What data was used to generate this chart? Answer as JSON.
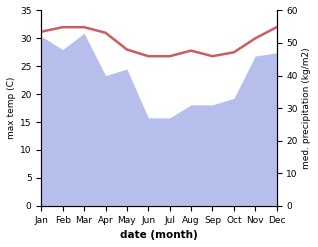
{
  "months": [
    "Jan",
    "Feb",
    "Mar",
    "Apr",
    "May",
    "Jun",
    "Jul",
    "Aug",
    "Sep",
    "Oct",
    "Nov",
    "Dec"
  ],
  "temperature": [
    31.2,
    32.0,
    32.0,
    31.0,
    28.0,
    26.8,
    26.8,
    27.8,
    26.8,
    27.5,
    30.0,
    32.0
  ],
  "precipitation": [
    52,
    48,
    53,
    40,
    42,
    27,
    27,
    31,
    31,
    33,
    46,
    47
  ],
  "temp_color": "#cd5c5c",
  "precip_color": "#aab4e8",
  "temp_ylim": [
    0,
    35
  ],
  "precip_ylim": [
    0,
    60
  ],
  "temp_ylabel": "max temp (C)",
  "precip_ylabel": "med. precipitation (kg/m2)",
  "xlabel": "date (month)",
  "temp_yticks": [
    0,
    5,
    10,
    15,
    20,
    25,
    30,
    35
  ],
  "precip_yticks": [
    0,
    10,
    20,
    30,
    40,
    50,
    60
  ],
  "bg_color": "#ffffff"
}
